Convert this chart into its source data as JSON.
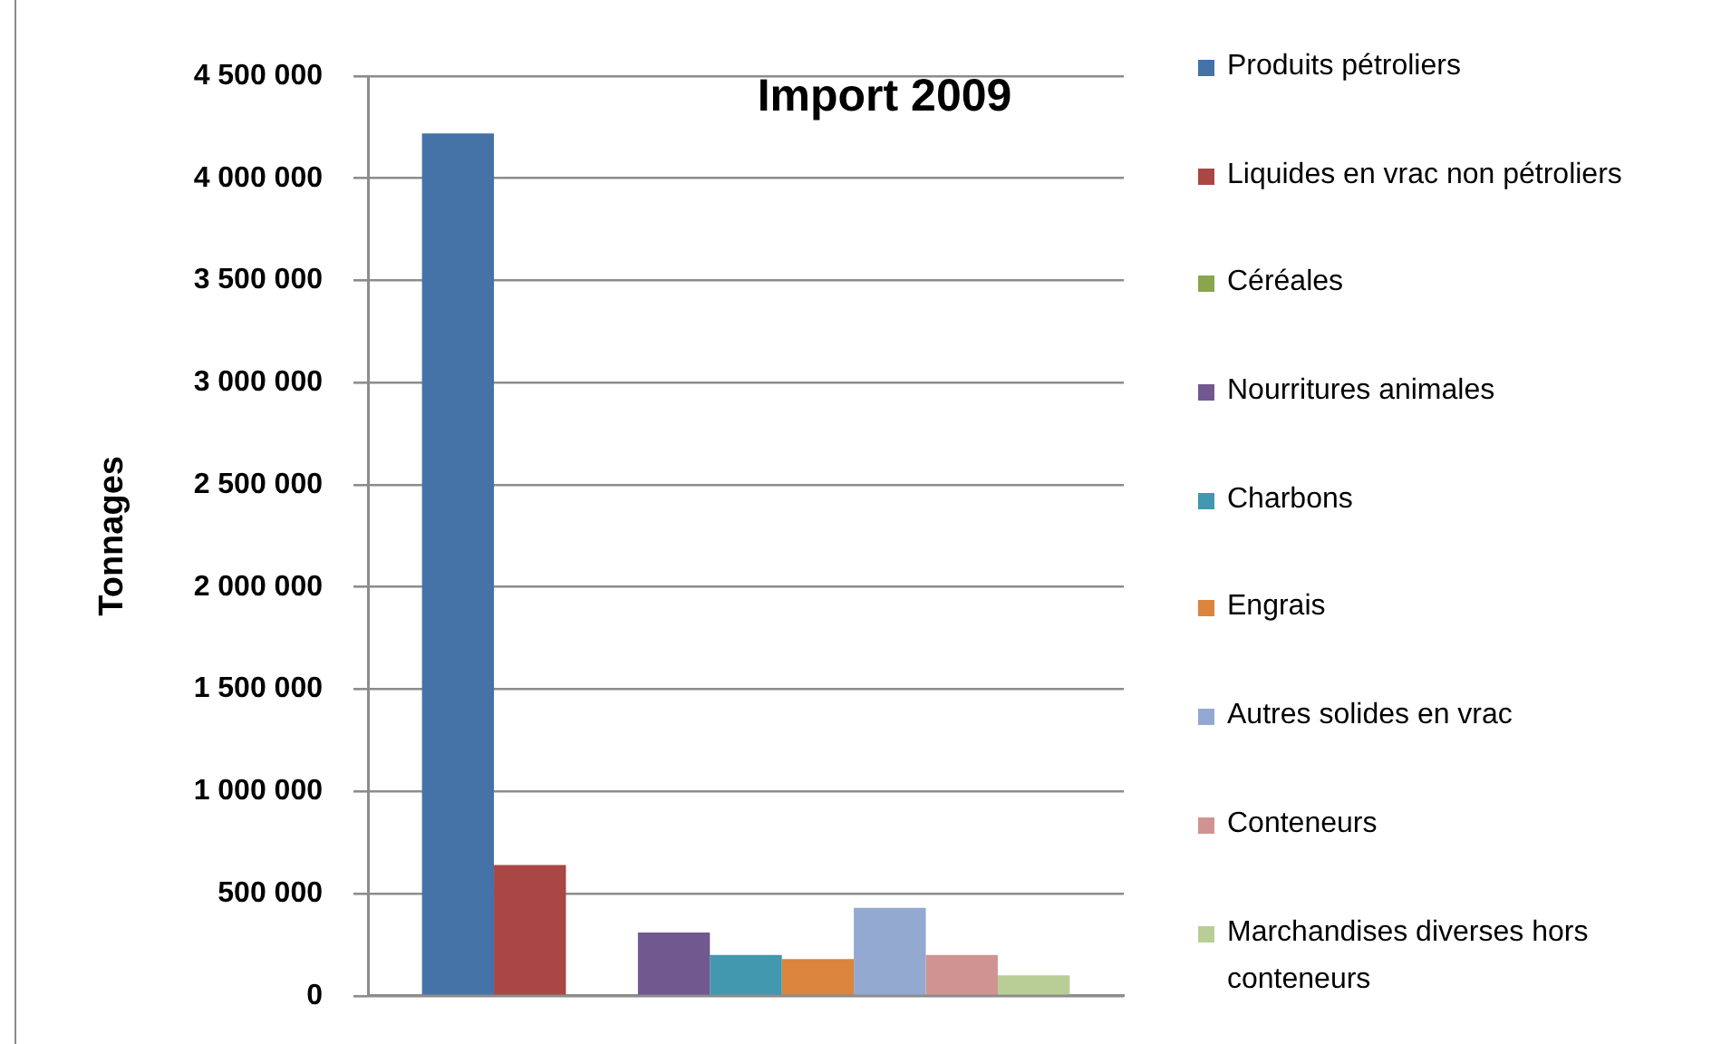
{
  "chart_data": {
    "type": "bar",
    "title": "Import 2009",
    "ylabel": "Tonnages",
    "categories": [
      null
    ],
    "series": [
      {
        "name": "Produits pétroliers",
        "color": "#4572a7",
        "values": [
          4220000
        ]
      },
      {
        "name": "Liquides en vrac non pétroliers",
        "color": "#aa4643",
        "values": [
          640000
        ]
      },
      {
        "name": "Céréales",
        "color": "#89a54e",
        "values": [
          null
        ]
      },
      {
        "name": "Nourritures animales",
        "color": "#71588f",
        "values": [
          310000
        ]
      },
      {
        "name": "Charbons",
        "color": "#4198af",
        "values": [
          200000
        ]
      },
      {
        "name": "Engrais",
        "color": "#db843d",
        "values": [
          180000
        ]
      },
      {
        "name": "Autres solides en vrac",
        "color": "#93a9cf",
        "values": [
          430000
        ]
      },
      {
        "name": "Conteneurs",
        "color": "#d19392",
        "values": [
          200000
        ]
      },
      {
        "name": "Marchandises diverses hors conteneurs",
        "color": "#b9cd96",
        "values": [
          100000
        ]
      }
    ],
    "ylim": [
      0,
      4500000
    ],
    "yticks": [
      0,
      {
        "value": 500000,
        "label": "500 000"
      },
      {
        "value": 1000000,
        "label": "1 000 000"
      },
      {
        "value": 1500000,
        "label": "1 500 000"
      },
      {
        "value": 2000000,
        "label": "2 000 000"
      },
      {
        "value": 2500000,
        "label": "2 500 000"
      },
      {
        "value": 3000000,
        "label": "3 000 000"
      },
      {
        "value": 3500000,
        "label": "3 500 000"
      },
      {
        "value": 4000000,
        "label": "4 000 000"
      },
      {
        "value": 4500000,
        "label": "4 500 000"
      }
    ],
    "grid": "y",
    "legend": "right"
  }
}
